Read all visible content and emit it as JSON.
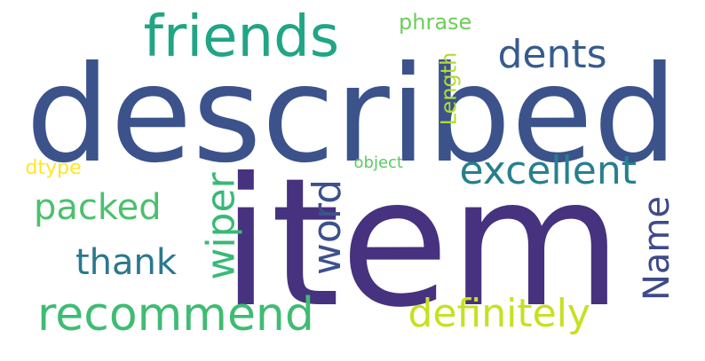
{
  "words": [
    {
      "id": "described",
      "text": "described",
      "color": "#3b528b"
    },
    {
      "id": "item",
      "text": "item",
      "color": "#46327e"
    },
    {
      "id": "friends",
      "text": "friends",
      "color": "#21a585"
    },
    {
      "id": "recommend",
      "text": "recommend",
      "color": "#3fbc73"
    },
    {
      "id": "excellent",
      "text": "excellent",
      "color": "#277f8e"
    },
    {
      "id": "definitely",
      "text": "definitely",
      "color": "#c8e020"
    },
    {
      "id": "dents",
      "text": "dents",
      "color": "#365c8d"
    },
    {
      "id": "packed",
      "text": "packed",
      "color": "#4ac16d"
    },
    {
      "id": "thank",
      "text": "thank",
      "color": "#2a788e"
    },
    {
      "id": "wiper",
      "text": "wiper",
      "color": "#38b977"
    },
    {
      "id": "word",
      "text": "word",
      "color": "#3b528b"
    },
    {
      "id": "name",
      "text": "Name",
      "color": "#3e4a89"
    },
    {
      "id": "length",
      "text": "Length",
      "color": "#b2dd2d"
    },
    {
      "id": "phrase",
      "text": "phrase",
      "color": "#6ccd5a"
    },
    {
      "id": "dtype",
      "text": "dtype",
      "color": "#fde725"
    },
    {
      "id": "object",
      "text": "object",
      "color": "#5ec962"
    }
  ]
}
